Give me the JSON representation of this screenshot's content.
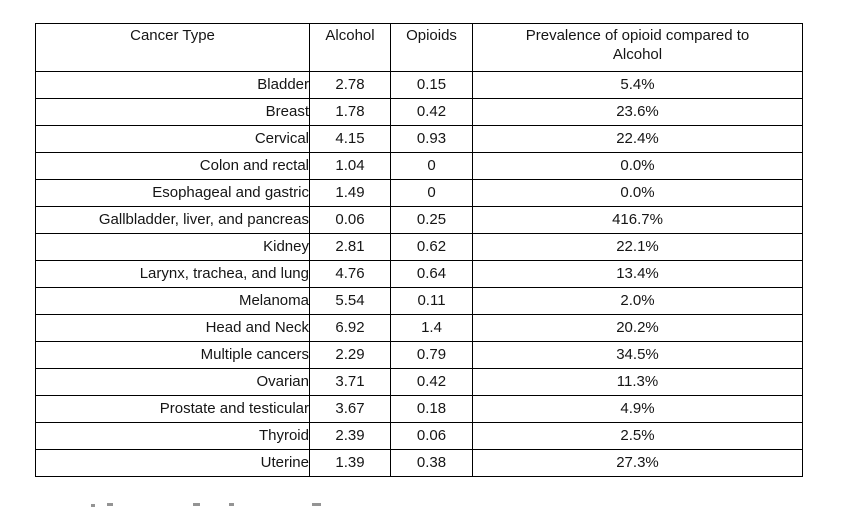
{
  "chart_data": {
    "type": "table",
    "columns": [
      "Cancer Type",
      "Alcohol",
      "Opioids",
      "Prevalence of opioid compared to Alcohol"
    ],
    "rows": [
      [
        "Bladder",
        "2.78",
        "0.15",
        "5.4%"
      ],
      [
        "Breast",
        "1.78",
        "0.42",
        "23.6%"
      ],
      [
        "Cervical",
        "4.15",
        "0.93",
        "22.4%"
      ],
      [
        "Colon and rectal",
        "1.04",
        "0",
        "0.0%"
      ],
      [
        "Esophageal and gastric",
        "1.49",
        "0",
        "0.0%"
      ],
      [
        "Gallbladder, liver, and pancreas",
        "0.06",
        "0.25",
        "416.7%"
      ],
      [
        "Kidney",
        "2.81",
        "0.62",
        "22.1%"
      ],
      [
        "Larynx, trachea, and lung",
        "4.76",
        "0.64",
        "13.4%"
      ],
      [
        "Melanoma",
        "5.54",
        "0.11",
        "2.0%"
      ],
      [
        "Head and Neck",
        "6.92",
        "1.4",
        "20.2%"
      ],
      [
        "Multiple cancers",
        "2.29",
        "0.79",
        "34.5%"
      ],
      [
        "Ovarian",
        "3.71",
        "0.42",
        "11.3%"
      ],
      [
        "Prostate and testicular",
        "3.67",
        "0.18",
        "4.9%"
      ],
      [
        "Thyroid",
        "2.39",
        "0.06",
        "2.5%"
      ],
      [
        "Uterine",
        "1.39",
        "0.38",
        "27.3%"
      ]
    ]
  },
  "style": {
    "border_color": "#000000",
    "text_color": "#151515",
    "background_color": "#ffffff"
  }
}
